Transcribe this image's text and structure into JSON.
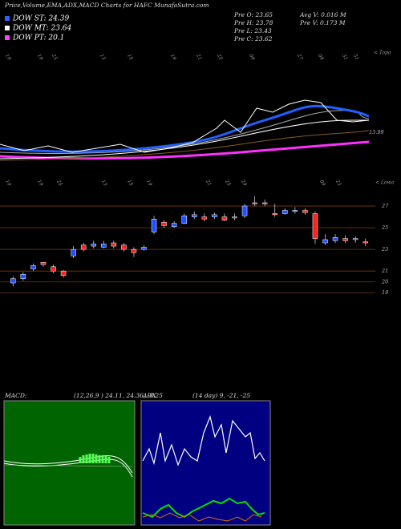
{
  "header": {
    "title": "Price,Volume,EMA,ADX,MACD Charts for HAFC MunafaSutra.com",
    "dow": [
      {
        "label": "DOW ST: 24.39",
        "color": "#3060ff"
      },
      {
        "label": "DOW MT: 23.64",
        "color": "#ffffff"
      },
      {
        "label": "DOW PT: 20.1",
        "color": "#ff40ff"
      }
    ],
    "prev": [
      "Pre O: 23.65",
      "Pre H: 23.78",
      "Pre L: 23.43",
      "Pre C: 23.62"
    ],
    "volume": [
      "Avg V: 0.016 M",
      "Pre V: 0.173 M"
    ]
  },
  "ema_panel": {
    "label": "13.99",
    "corner": "< Topa",
    "dates": [
      "19",
      "19",
      "25",
      "13",
      "15",
      "19",
      "21",
      "25",
      "09",
      "27",
      "09",
      "31",
      "31"
    ]
  },
  "chart_data": {
    "type": "candlestick",
    "corner": "< Lowa",
    "dates": [
      "19",
      "19",
      "25",
      "13",
      "15",
      "19",
      "21",
      "25",
      "29",
      "09",
      "23"
    ],
    "open": [
      19.9,
      20.3,
      21.2,
      21.8,
      21.4,
      21.0,
      22.4,
      23.4,
      23.3,
      23.2,
      23.6,
      23.4,
      23.0,
      23.0,
      24.6,
      25.5,
      25.1,
      25.4,
      26.0,
      26.0,
      26.0,
      26.0,
      25.9,
      26.1,
      27.3,
      27.3,
      26.3,
      26.3,
      26.5,
      26.6,
      26.3,
      23.6,
      23.8,
      24.0,
      23.9,
      23.7
    ],
    "close": [
      20.3,
      20.7,
      21.5,
      21.6,
      21.0,
      20.6,
      23.0,
      23.0,
      23.5,
      23.5,
      23.3,
      23.0,
      22.7,
      23.2,
      25.8,
      25.2,
      25.4,
      26.1,
      26.2,
      25.8,
      26.2,
      25.7,
      26.0,
      27.0,
      27.2,
      27.2,
      26.2,
      26.6,
      26.6,
      26.4,
      24.0,
      23.9,
      24.1,
      23.8,
      24.0,
      23.6
    ],
    "high": [
      20.5,
      20.9,
      21.7,
      21.8,
      21.6,
      21.1,
      23.3,
      23.6,
      23.8,
      23.8,
      23.8,
      23.6,
      23.2,
      23.4,
      26.1,
      25.7,
      25.6,
      26.3,
      26.5,
      26.3,
      26.4,
      26.3,
      26.3,
      27.2,
      27.9,
      27.6,
      27.2,
      26.8,
      26.9,
      26.8,
      26.5,
      24.4,
      24.4,
      24.3,
      24.2,
      24.0
    ],
    "low": [
      19.6,
      20.1,
      21.0,
      21.4,
      20.8,
      20.4,
      22.2,
      22.8,
      23.1,
      23.1,
      23.1,
      22.8,
      22.3,
      22.9,
      24.4,
      25.0,
      25.0,
      25.3,
      25.8,
      25.6,
      25.8,
      25.6,
      25.7,
      25.9,
      27.0,
      27.0,
      26.0,
      26.2,
      26.3,
      26.2,
      23.5,
      23.4,
      23.6,
      23.6,
      23.6,
      23.3
    ],
    "up_color": "#2050ff",
    "down_color": "#ff2020",
    "ylim": [
      18.5,
      29
    ],
    "yticks": [
      27,
      25,
      23,
      21,
      20,
      19
    ]
  },
  "macd_panel": {
    "label": "MACD:",
    "params": "(12,26,9 ) 24.11, 24.36, -0.25"
  },
  "adx_panel": {
    "label": "ADX",
    "params": "(14 day) 9, -21, -25"
  }
}
